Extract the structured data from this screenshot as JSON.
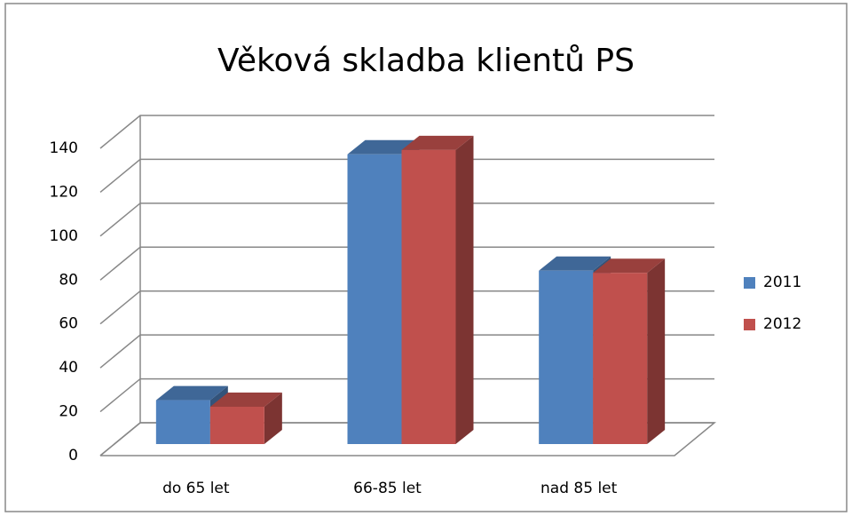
{
  "chart_data": {
    "type": "bar3d",
    "title": "Věková skladba klientů PS",
    "categories": [
      "do 65 let",
      "66-85 let",
      "nad 85 let"
    ],
    "series": [
      {
        "name": "2011",
        "color": "#4f81bd",
        "values": [
          20,
          132,
          79
        ]
      },
      {
        "name": "2012",
        "color": "#c0504d",
        "values": [
          17,
          134,
          78
        ]
      }
    ],
    "ylim": [
      0,
      140
    ],
    "yticks": [
      0,
      20,
      40,
      60,
      80,
      100,
      120,
      140
    ],
    "grid": true,
    "legend": "right"
  }
}
